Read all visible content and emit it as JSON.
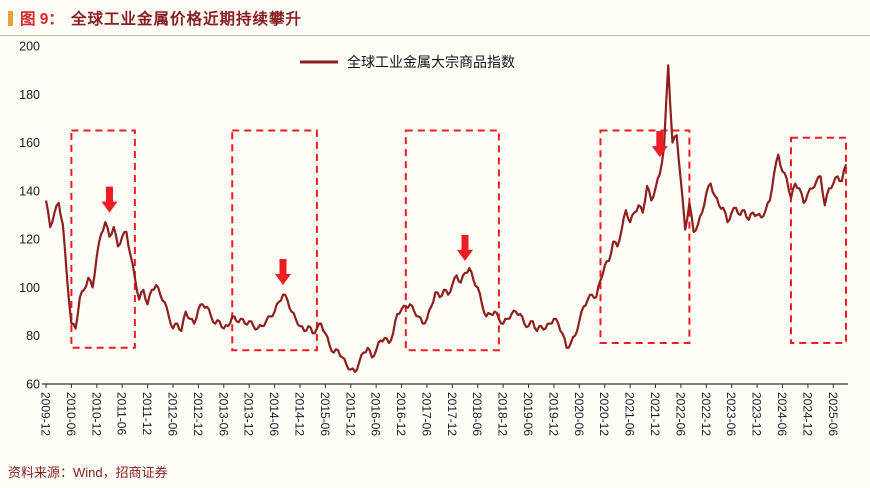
{
  "header": {
    "figure_label": "图 9：",
    "title": "全球工业金属价格近期持续攀升"
  },
  "footer": {
    "source": "资料来源：Wind，招商证券"
  },
  "colors": {
    "series": "#8e1f1f",
    "highlight": "#ee1c25",
    "accent_bar": "#e8a33d",
    "figure_label": "#d7282f",
    "title_text": "#8a1f23",
    "source_text": "#8a1f23"
  },
  "chart_data": {
    "type": "line",
    "title": "全球工业金属价格近期持续攀升",
    "legend": [
      "全球工业金属大宗商品指数"
    ],
    "legend_position": "top-center",
    "grid": false,
    "series_color": "#8e1f1f",
    "highlight_color": "#ee1c25",
    "ylim": [
      60,
      200
    ],
    "ytick_step": 20,
    "x_start": "2009-12",
    "x_frequency": "monthly",
    "xtick_labels": [
      "2009-12",
      "2010-06",
      "2010-12",
      "2011-06",
      "2011-12",
      "2012-06",
      "2012-12",
      "2013-06",
      "2013-12",
      "2014-06",
      "2014-12",
      "2015-06",
      "2015-12",
      "2016-06",
      "2016-12",
      "2017-06",
      "2017-12",
      "2018-06",
      "2018-12",
      "2019-06",
      "2019-12",
      "2020-06",
      "2020-12",
      "2021-06",
      "2021-12",
      "2022-06",
      "2022-12",
      "2023-06",
      "2023-12",
      "2024-06",
      "2024-12",
      "2025-06"
    ],
    "values": [
      136,
      125,
      131,
      135,
      126,
      103,
      85,
      83,
      96,
      99,
      104,
      100,
      113,
      122,
      127,
      121,
      125,
      117,
      121,
      123,
      113,
      104,
      95,
      99,
      93,
      99,
      101,
      97,
      94,
      88,
      83,
      85,
      82,
      90,
      87,
      85,
      91,
      93,
      92,
      88,
      85,
      86,
      83,
      84,
      88,
      86,
      87,
      85,
      86,
      84,
      83,
      84,
      86,
      88,
      90,
      94,
      97,
      95,
      90,
      87,
      84,
      82,
      84,
      81,
      83,
      85,
      81,
      76,
      73,
      74,
      71,
      68,
      66,
      65,
      69,
      73,
      75,
      71,
      74,
      78,
      79,
      77,
      81,
      89,
      91,
      92,
      93,
      90,
      88,
      85,
      87,
      92,
      98,
      96,
      99,
      97,
      101,
      105,
      102,
      106,
      108,
      103,
      100,
      93,
      88,
      89,
      90,
      87,
      85,
      87,
      89,
      90,
      89,
      85,
      84,
      86,
      82,
      84,
      83,
      85,
      87,
      85,
      81,
      75,
      77,
      80,
      86,
      92,
      95,
      97,
      96,
      103,
      109,
      111,
      119,
      117,
      124,
      132,
      127,
      131,
      134,
      131,
      142,
      136,
      141,
      147,
      158,
      192,
      160,
      163,
      144,
      124,
      135,
      123,
      126,
      131,
      139,
      143,
      138,
      134,
      133,
      127,
      131,
      133,
      130,
      132,
      128,
      131,
      130,
      129,
      132,
      136,
      147,
      155,
      148,
      145,
      137,
      143,
      141,
      135,
      139,
      141,
      144,
      146,
      134,
      141,
      143,
      146,
      144,
      151
    ],
    "highlight_boxes": [
      {
        "from": "2010-06",
        "to": "2011-09",
        "y_low": 75,
        "y_high": 165
      },
      {
        "from": "2013-08",
        "to": "2015-04",
        "y_low": 74,
        "y_high": 165
      },
      {
        "from": "2017-01",
        "to": "2018-11",
        "y_low": 74,
        "y_high": 165
      },
      {
        "from": "2020-11",
        "to": "2022-08",
        "y_low": 77,
        "y_high": 165
      },
      {
        "from": "2024-08",
        "to": "2025-09",
        "y_low": 77,
        "y_high": 162
      }
    ],
    "arrows": [
      {
        "x": "2011-03",
        "tip": 131
      },
      {
        "x": "2014-08",
        "tip": 101
      },
      {
        "x": "2018-03",
        "tip": 111
      },
      {
        "x": "2022-01",
        "tip": 154
      }
    ]
  }
}
